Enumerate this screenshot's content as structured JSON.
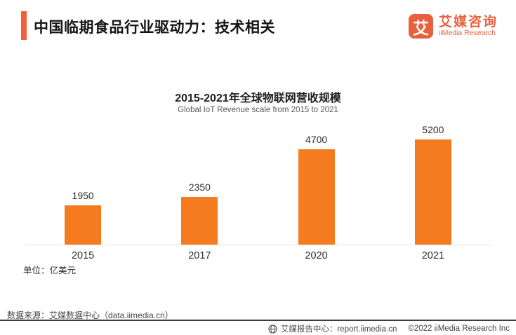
{
  "header": {
    "title": "中国临期食品行业驱动力：技术相关",
    "logo": {
      "icon_char": "艾",
      "name_cn": "艾媒咨询",
      "name_en": "iiMedia Research"
    }
  },
  "chart_data": {
    "type": "bar",
    "title": "2015-2021年全球物联网营收规模",
    "subtitle": "Global IoT Revenue scale from 2015 to 2021",
    "categories": [
      "2015",
      "2017",
      "2020",
      "2021"
    ],
    "values": [
      1950,
      2350,
      4700,
      5200
    ],
    "unit_label": "单位：亿美元",
    "ylabel": "",
    "xlabel": "",
    "ylim": [
      0,
      5550
    ],
    "grid": false,
    "legend": "none",
    "data_labels": true,
    "bar_color": "#F47B20"
  },
  "footer": {
    "source": "数据来源：艾媒数据中心（data.iimedia.cn）",
    "report_center": "艾媒报告中心：report.iimedia.cn",
    "copyright": "©2022  iiMedia Research  Inc"
  },
  "colors": {
    "accent_bar": "#F2603A",
    "bar_orange": "#F47B20",
    "logo_orange": "#E8603C",
    "axis_line": "#e3e3e3",
    "divider": "#3d3d3d"
  }
}
